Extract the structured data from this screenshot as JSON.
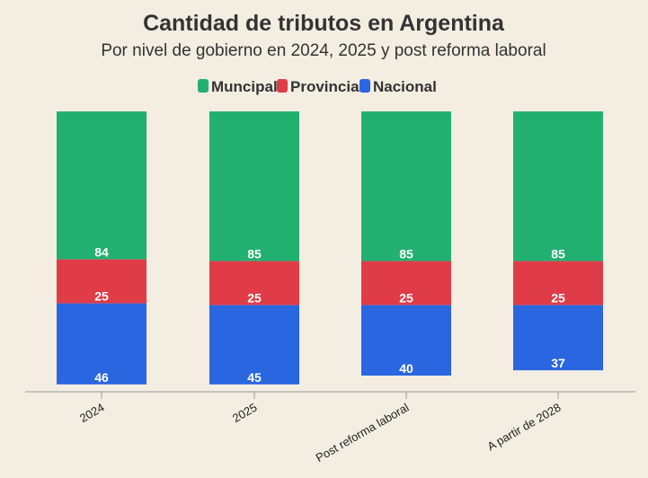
{
  "chart_data": {
    "type": "bar",
    "stacked": true,
    "title": "Cantidad de tributos en Argentina",
    "subtitle": "Por nivel de gobierno en 2024, 2025 y post reforma laboral",
    "categories": [
      "2024",
      "2025",
      "Post reforma laboral",
      "A partir de 2028"
    ],
    "series": [
      {
        "name": "Nacional",
        "color": "#2a66e0",
        "values": [
          46,
          45,
          40,
          37
        ]
      },
      {
        "name": "Provincial",
        "color": "#e03c48",
        "values": [
          25,
          25,
          25,
          25
        ]
      },
      {
        "name": "Muncipal",
        "color": "#22b070",
        "values": [
          84,
          85,
          85,
          85
        ]
      }
    ],
    "legend_order": [
      "Muncipal",
      "Provincial",
      "Nacional"
    ],
    "legend_position": "top",
    "grid": false,
    "data_labels": true
  }
}
